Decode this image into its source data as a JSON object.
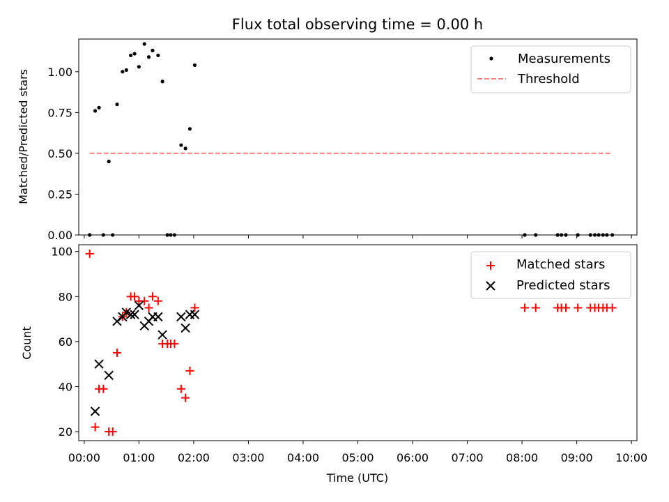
{
  "figure": {
    "title": "Flux total observing time = 0.00 h"
  },
  "chart_data": [
    {
      "type": "scatter",
      "panel": "top",
      "xlabel": "",
      "ylabel": "Matched/Predicted stars",
      "xlim": [
        -0.1,
        10.1
      ],
      "ylim": [
        0,
        1.2
      ],
      "yticks": [
        0.0,
        0.25,
        0.5,
        0.75,
        1.0
      ],
      "ytick_labels": [
        "0.00",
        "0.25",
        "0.50",
        "0.75",
        "1.00"
      ],
      "grid": false,
      "legend_position": "top-right",
      "series": [
        {
          "name": "Measurements",
          "kind": "points",
          "color": "#000000",
          "x": [
            0.1,
            0.2,
            0.27,
            0.35,
            0.45,
            0.52,
            0.6,
            0.7,
            0.77,
            0.85,
            0.92,
            1.0,
            1.1,
            1.18,
            1.25,
            1.35,
            1.43,
            1.52,
            1.58,
            1.65,
            1.77,
            1.85,
            1.93,
            2.02,
            8.05,
            8.25,
            8.65,
            8.72,
            8.8,
            9.02,
            9.25,
            9.33,
            9.4,
            9.48,
            9.55,
            9.65
          ],
          "y": [
            0.0,
            0.76,
            0.78,
            0.0,
            0.45,
            0.0,
            0.8,
            1.0,
            1.01,
            1.1,
            1.11,
            1.03,
            1.17,
            1.09,
            1.13,
            1.1,
            0.94,
            0.0,
            0.0,
            0.0,
            0.55,
            0.53,
            0.65,
            1.04,
            0.0,
            0.0,
            0.0,
            0.0,
            0.0,
            0.0,
            0.0,
            0.0,
            0.0,
            0.0,
            0.0,
            0.0
          ]
        },
        {
          "name": "Threshold",
          "kind": "dashed-line",
          "color": "#ff8080",
          "x": [
            0.1,
            9.65
          ],
          "y": [
            0.5,
            0.5
          ]
        }
      ]
    },
    {
      "type": "scatter",
      "panel": "bottom",
      "xlabel": "Time (UTC)",
      "ylabel": "Count",
      "xlim": [
        -0.1,
        10.1
      ],
      "ylim": [
        16,
        103
      ],
      "xticks": [
        0,
        1,
        2,
        3,
        4,
        5,
        6,
        7,
        8,
        9,
        10
      ],
      "xtick_labels": [
        "00:00",
        "01:00",
        "02:00",
        "03:00",
        "04:00",
        "05:00",
        "06:00",
        "07:00",
        "08:00",
        "09:00",
        "10:00"
      ],
      "yticks": [
        20,
        40,
        60,
        80,
        100
      ],
      "ytick_labels": [
        "20",
        "40",
        "60",
        "80",
        "100"
      ],
      "grid": false,
      "legend_position": "top-right",
      "series": [
        {
          "name": "Matched stars",
          "kind": "plus",
          "color": "#ff0000",
          "x": [
            0.1,
            0.2,
            0.27,
            0.35,
            0.45,
            0.52,
            0.6,
            0.7,
            0.77,
            0.85,
            0.92,
            1.0,
            1.1,
            1.18,
            1.25,
            1.35,
            1.43,
            1.52,
            1.58,
            1.65,
            1.77,
            1.85,
            1.93,
            2.02,
            8.05,
            8.25,
            8.65,
            8.72,
            8.8,
            9.02,
            9.25,
            9.33,
            9.4,
            9.48,
            9.55,
            9.65
          ],
          "y": [
            99,
            22,
            39,
            39,
            20,
            20,
            55,
            71,
            73,
            80,
            80,
            78,
            78,
            75,
            80,
            78,
            59,
            59,
            59,
            59,
            39,
            35,
            47,
            75,
            75,
            75,
            75,
            75,
            75,
            75,
            75,
            75,
            75,
            75,
            75,
            75
          ]
        },
        {
          "name": "Predicted stars",
          "kind": "x",
          "color": "#000000",
          "x": [
            0.2,
            0.27,
            0.45,
            0.6,
            0.7,
            0.77,
            0.85,
            0.92,
            1.0,
            1.1,
            1.18,
            1.25,
            1.35,
            1.43,
            1.77,
            1.85,
            1.93,
            2.02
          ],
          "y": [
            29,
            50,
            45,
            69,
            71,
            73,
            72,
            72,
            76,
            67,
            69,
            71,
            71,
            63,
            71,
            66,
            72,
            72
          ]
        }
      ]
    }
  ]
}
